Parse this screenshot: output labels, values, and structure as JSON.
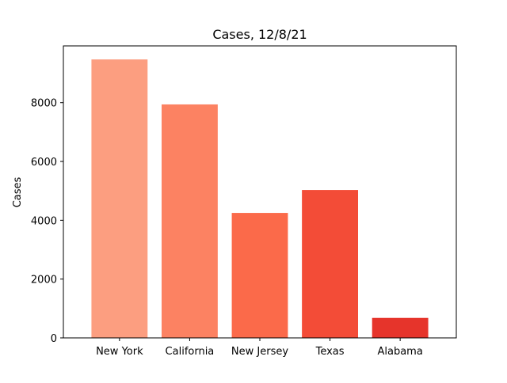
{
  "chart_data": {
    "type": "bar",
    "title": "Cases, 12/8/21",
    "xlabel": "",
    "ylabel": "Cases",
    "categories": [
      "New York",
      "California",
      "New Jersey",
      "Texas",
      "Alabama"
    ],
    "values": [
      9470,
      7940,
      4250,
      5030,
      680
    ],
    "colors": [
      "#fc9e80",
      "#fc8262",
      "#fb6a4a",
      "#f34c37",
      "#e6342b"
    ],
    "ylim": [
      0,
      9930
    ],
    "yticks": [
      0,
      2000,
      4000,
      6000,
      8000
    ],
    "ytick_labels": [
      "0",
      "2000",
      "4000",
      "6000",
      "8000"
    ],
    "grid": false,
    "legend": "none"
  }
}
